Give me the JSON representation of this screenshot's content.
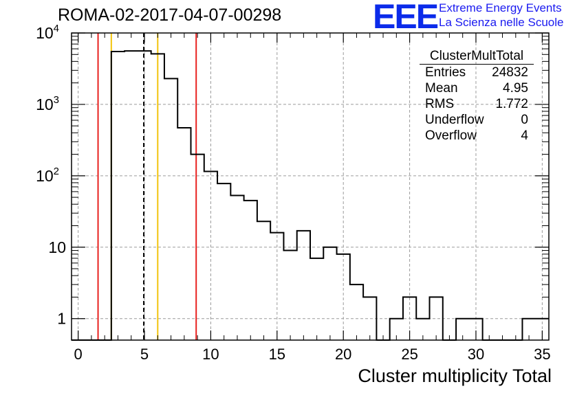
{
  "title": "ROMA-02-2017-04-07-00298",
  "logo": {
    "mark": "EEE",
    "line1": "Extreme Energy Events",
    "line2": "La Scienza nelle Scuole",
    "color": "#0b2bea"
  },
  "stats": {
    "name": "ClusterMultTotal",
    "rows": [
      {
        "label": "Entries",
        "value": "24832"
      },
      {
        "label": "Mean",
        "value": "4.95"
      },
      {
        "label": "RMS",
        "value": "1.772"
      },
      {
        "label": "Underflow",
        "value": "0"
      },
      {
        "label": "Overflow",
        "value": "4"
      }
    ]
  },
  "chart_data": {
    "type": "histogram",
    "xlabel": "Cluster multiplicity Total",
    "ylabel": "",
    "xlim": [
      -0.5,
      35.5
    ],
    "ylim": [
      0.5,
      10000
    ],
    "yscale": "log",
    "grid": true,
    "xticks": [
      0,
      5,
      10,
      15,
      20,
      25,
      30,
      35
    ],
    "yticks": [
      {
        "value": 1,
        "label": "1"
      },
      {
        "value": 10,
        "label": "10"
      },
      {
        "value": 100,
        "label": "10^2"
      },
      {
        "value": 1000,
        "label": "10^3"
      },
      {
        "value": 10000,
        "label": "10^4"
      }
    ],
    "bin_width": 1,
    "bins": [
      {
        "x": 3,
        "count": 5500
      },
      {
        "x": 4,
        "count": 5600
      },
      {
        "x": 5,
        "count": 5600
      },
      {
        "x": 6,
        "count": 5100
      },
      {
        "x": 7,
        "count": 2300
      },
      {
        "x": 8,
        "count": 470
      },
      {
        "x": 9,
        "count": 200
      },
      {
        "x": 10,
        "count": 115
      },
      {
        "x": 11,
        "count": 78
      },
      {
        "x": 12,
        "count": 53
      },
      {
        "x": 13,
        "count": 45
      },
      {
        "x": 14,
        "count": 23
      },
      {
        "x": 15,
        "count": 16
      },
      {
        "x": 16,
        "count": 9
      },
      {
        "x": 17,
        "count": 17
      },
      {
        "x": 18,
        "count": 7
      },
      {
        "x": 19,
        "count": 10
      },
      {
        "x": 20,
        "count": 8
      },
      {
        "x": 21,
        "count": 3
      },
      {
        "x": 22,
        "count": 2
      },
      {
        "x": 24,
        "count": 1
      },
      {
        "x": 25,
        "count": 2
      },
      {
        "x": 26,
        "count": 1
      },
      {
        "x": 27,
        "count": 2
      },
      {
        "x": 29,
        "count": 1
      },
      {
        "x": 30,
        "count": 1
      },
      {
        "x": 34,
        "count": 1
      },
      {
        "x": 35,
        "count": 1
      }
    ],
    "markers": [
      {
        "x": 1.5,
        "color": "#e8201e",
        "style": "solid"
      },
      {
        "x": 2.5,
        "color": "#f2c40c",
        "style": "solid"
      },
      {
        "x": 4.95,
        "color": "#000000",
        "style": "dashed"
      },
      {
        "x": 6.0,
        "color": "#f2c40c",
        "style": "solid"
      },
      {
        "x": 8.9,
        "color": "#e8201e",
        "style": "solid"
      }
    ]
  }
}
